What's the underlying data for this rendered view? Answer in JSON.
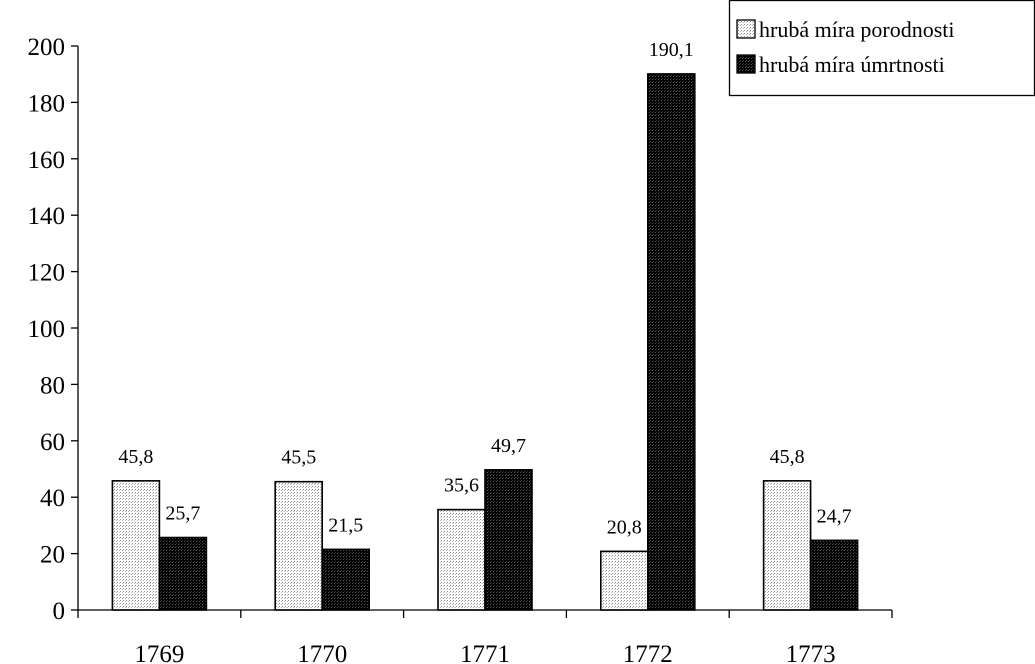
{
  "chart_data": {
    "type": "bar",
    "categories": [
      "1769",
      "1770",
      "1771",
      "1772",
      "1773"
    ],
    "series": [
      {
        "name": "hrubá míra porodnosti",
        "values": [
          45.8,
          45.5,
          35.6,
          20.8,
          45.8
        ],
        "labels": [
          "45,8",
          "45,5",
          "35,6",
          "20,8",
          "45,8"
        ],
        "fill": "light-dotted",
        "color": "#f2f2f2"
      },
      {
        "name": "hrubá míra úmrtnosti",
        "values": [
          25.7,
          21.5,
          49.7,
          190.1,
          24.7
        ],
        "labels": [
          "25,7",
          "21,5",
          "49,7",
          "190,1",
          "24,7"
        ],
        "fill": "dark-dotted",
        "color": "#0d0d0d"
      }
    ],
    "ylim": [
      0,
      200
    ],
    "yticks": [
      0,
      20,
      40,
      60,
      80,
      100,
      120,
      140,
      160,
      180,
      200
    ],
    "grid": false,
    "legend_position": "top-right",
    "title": "",
    "xlabel": "",
    "ylabel": ""
  }
}
